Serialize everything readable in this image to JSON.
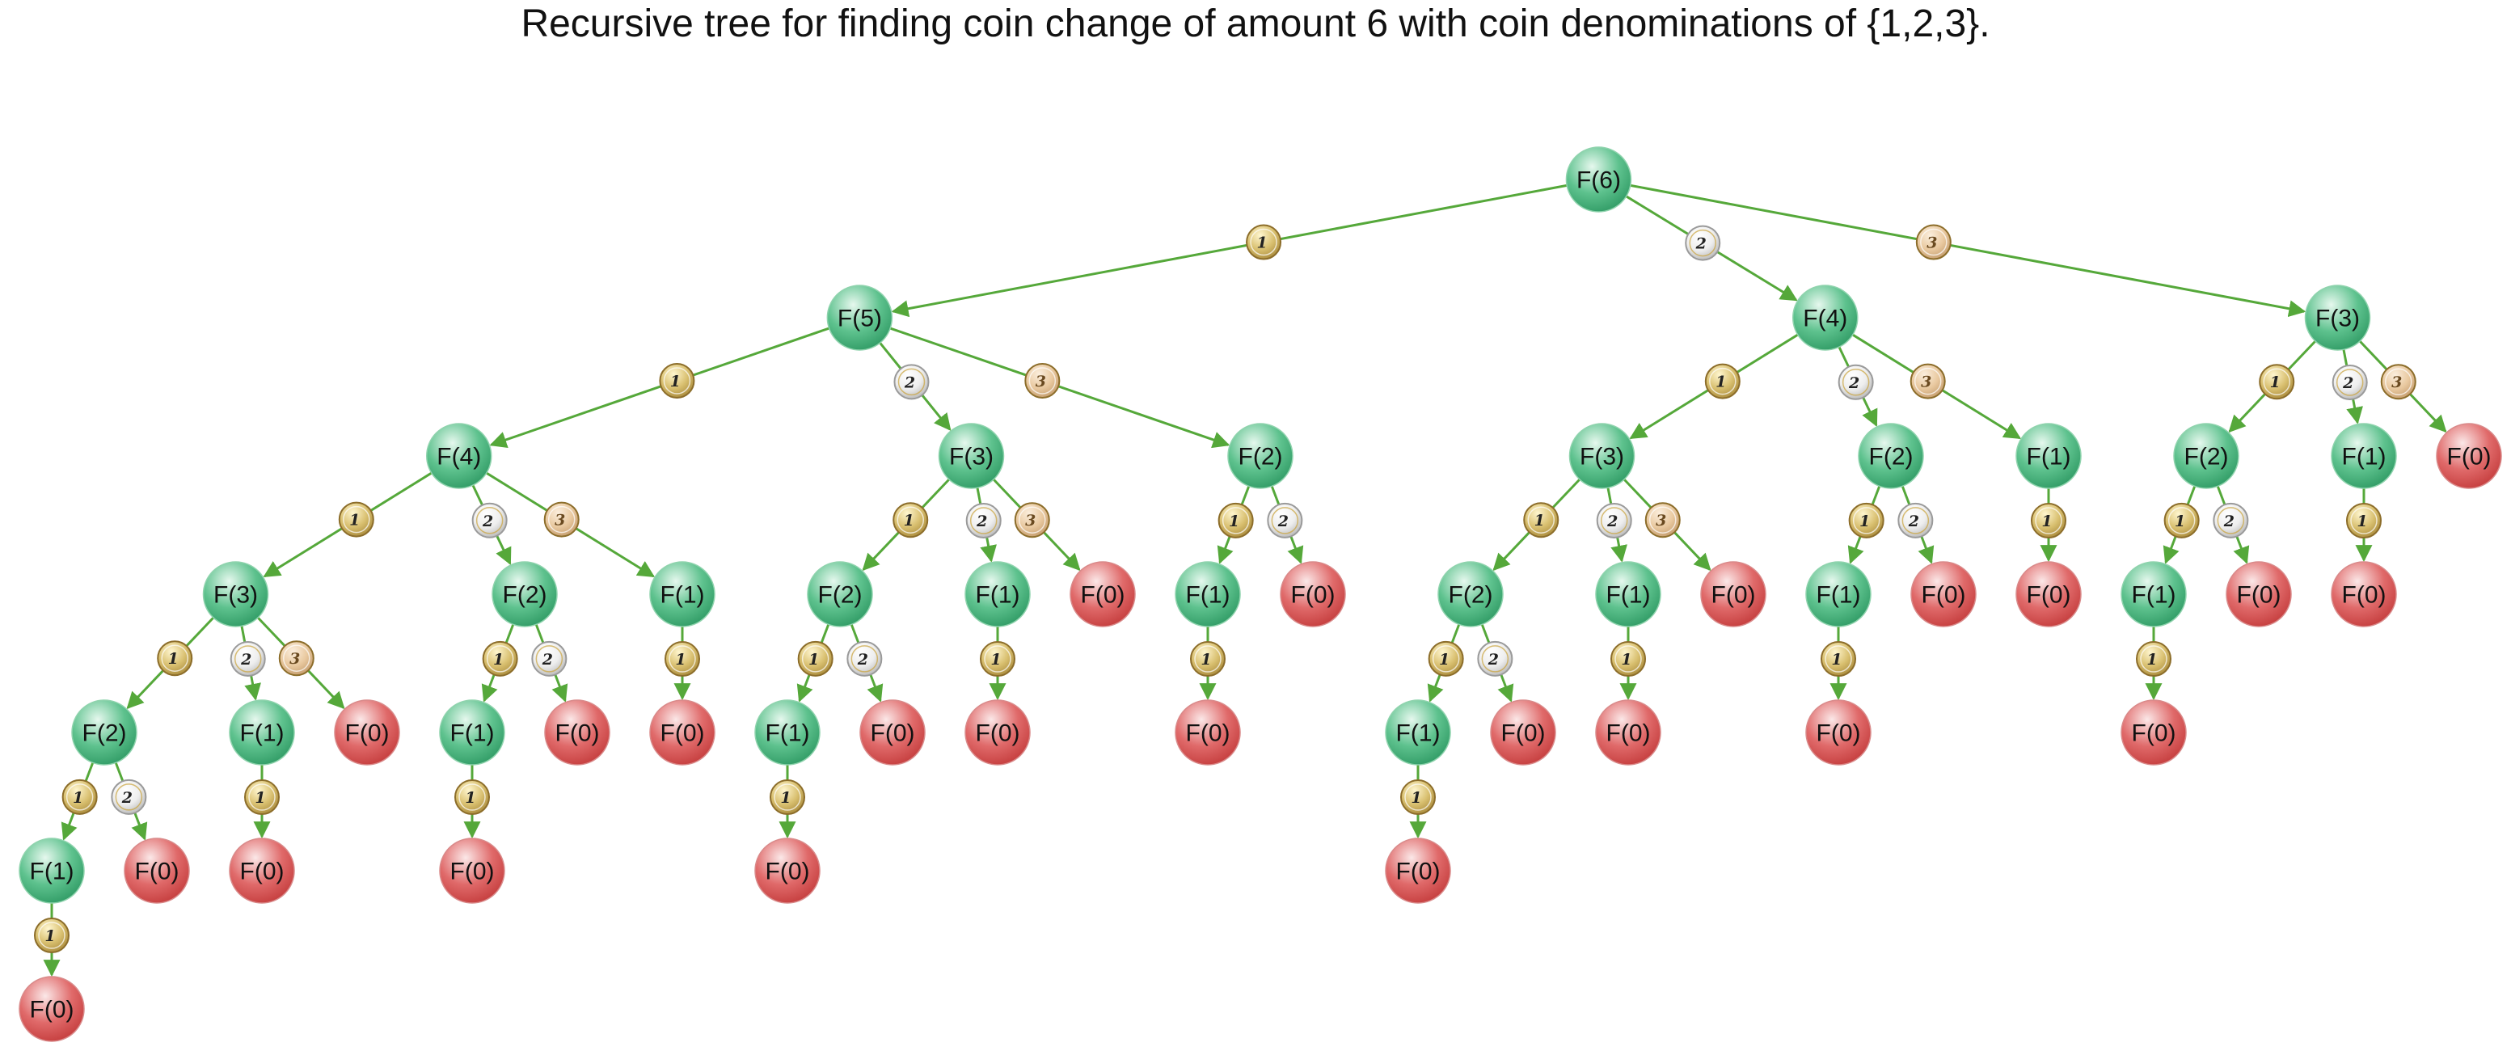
{
  "title": "Recursive tree for finding coin change of amount 6 with coin denominations of {1,2,3}.",
  "node_label_format": "F(n)",
  "coin_denominations": [
    "1",
    "2",
    "3"
  ],
  "colors": {
    "active_node": "#5ec28e",
    "base_node": "#e06a6a",
    "edge": "#55a83a",
    "coin_1": "#d9c070",
    "coin_2": "#eeeeee",
    "coin_3": "#e9c9a0"
  },
  "tree": {
    "value": 6,
    "children": [
      {
        "coin": "1",
        "value": 5,
        "children": [
          {
            "coin": "1",
            "value": 4,
            "children": [
              {
                "coin": "1",
                "value": 3,
                "children": [
                  {
                    "coin": "1",
                    "value": 2,
                    "children": [
                      {
                        "coin": "1",
                        "value": 1,
                        "children": [
                          {
                            "coin": "1",
                            "value": 0
                          }
                        ]
                      },
                      {
                        "coin": "2",
                        "value": 0
                      }
                    ]
                  },
                  {
                    "coin": "2",
                    "value": 1,
                    "children": [
                      {
                        "coin": "1",
                        "value": 0
                      }
                    ]
                  },
                  {
                    "coin": "3",
                    "value": 0
                  }
                ]
              },
              {
                "coin": "2",
                "value": 2,
                "children": [
                  {
                    "coin": "1",
                    "value": 1,
                    "children": [
                      {
                        "coin": "1",
                        "value": 0
                      }
                    ]
                  },
                  {
                    "coin": "2",
                    "value": 0
                  }
                ]
              },
              {
                "coin": "3",
                "value": 1,
                "children": [
                  {
                    "coin": "1",
                    "value": 0
                  }
                ]
              }
            ]
          },
          {
            "coin": "2",
            "value": 3,
            "children": [
              {
                "coin": "1",
                "value": 2,
                "children": [
                  {
                    "coin": "1",
                    "value": 1,
                    "children": [
                      {
                        "coin": "1",
                        "value": 0
                      }
                    ]
                  },
                  {
                    "coin": "2",
                    "value": 0
                  }
                ]
              },
              {
                "coin": "2",
                "value": 1,
                "children": [
                  {
                    "coin": "1",
                    "value": 0
                  }
                ]
              },
              {
                "coin": "3",
                "value": 0
              }
            ]
          },
          {
            "coin": "3",
            "value": 2,
            "children": [
              {
                "coin": "1",
                "value": 1,
                "children": [
                  {
                    "coin": "1",
                    "value": 0
                  }
                ]
              },
              {
                "coin": "2",
                "value": 0
              }
            ]
          }
        ]
      },
      {
        "coin": "2",
        "value": 4,
        "children": [
          {
            "coin": "1",
            "value": 3,
            "children": [
              {
                "coin": "1",
                "value": 2,
                "children": [
                  {
                    "coin": "1",
                    "value": 1,
                    "children": [
                      {
                        "coin": "1",
                        "value": 0
                      }
                    ]
                  },
                  {
                    "coin": "2",
                    "value": 0
                  }
                ]
              },
              {
                "coin": "2",
                "value": 1,
                "children": [
                  {
                    "coin": "1",
                    "value": 0
                  }
                ]
              },
              {
                "coin": "3",
                "value": 0
              }
            ]
          },
          {
            "coin": "2",
            "value": 2,
            "children": [
              {
                "coin": "1",
                "value": 1,
                "children": [
                  {
                    "coin": "1",
                    "value": 0
                  }
                ]
              },
              {
                "coin": "2",
                "value": 0
              }
            ]
          },
          {
            "coin": "3",
            "value": 1,
            "children": [
              {
                "coin": "1",
                "value": 0
              }
            ]
          }
        ]
      },
      {
        "coin": "3",
        "value": 3,
        "children": [
          {
            "coin": "1",
            "value": 2,
            "children": [
              {
                "coin": "1",
                "value": 1,
                "children": [
                  {
                    "coin": "1",
                    "value": 0
                  }
                ]
              },
              {
                "coin": "2",
                "value": 0
              }
            ]
          },
          {
            "coin": "2",
            "value": 1,
            "children": [
              {
                "coin": "1",
                "value": 0
              }
            ]
          },
          {
            "coin": "3",
            "value": 0
          }
        ]
      }
    ]
  }
}
